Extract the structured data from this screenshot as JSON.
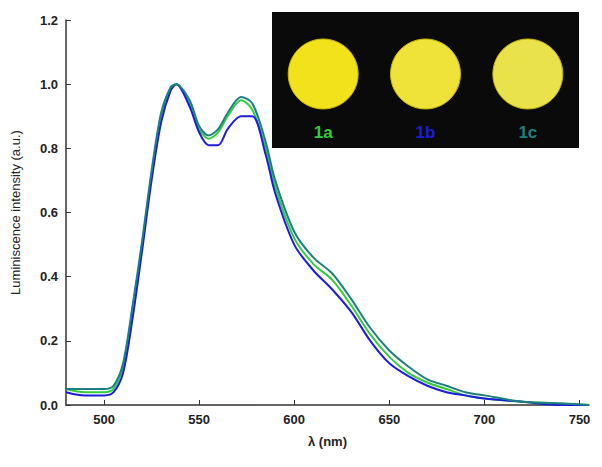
{
  "chart_data": {
    "type": "line",
    "x_label": "λ (nm)",
    "y_label": "Luminiscence intensity (a.u.)",
    "x": [
      480,
      490,
      500,
      505,
      510,
      515,
      520,
      525,
      530,
      535,
      538,
      545,
      550,
      555,
      560,
      565,
      572,
      578,
      585,
      590,
      600,
      610,
      620,
      630,
      640,
      650,
      660,
      670,
      680,
      690,
      700,
      720,
      740,
      755
    ],
    "series": [
      {
        "name": "1a",
        "color": "#2fcf3a",
        "values": [
          0.05,
          0.04,
          0.04,
          0.05,
          0.12,
          0.3,
          0.5,
          0.72,
          0.9,
          0.99,
          1.0,
          0.94,
          0.86,
          0.83,
          0.85,
          0.9,
          0.95,
          0.92,
          0.8,
          0.68,
          0.52,
          0.44,
          0.39,
          0.31,
          0.22,
          0.15,
          0.1,
          0.07,
          0.05,
          0.03,
          0.02,
          0.01,
          0.005,
          0.0
        ]
      },
      {
        "name": "1b",
        "color": "#1c1cdc",
        "values": [
          0.04,
          0.03,
          0.03,
          0.04,
          0.1,
          0.27,
          0.48,
          0.7,
          0.88,
          0.98,
          1.0,
          0.93,
          0.85,
          0.81,
          0.81,
          0.86,
          0.9,
          0.9,
          0.78,
          0.66,
          0.5,
          0.42,
          0.36,
          0.29,
          0.2,
          0.13,
          0.09,
          0.06,
          0.04,
          0.03,
          0.02,
          0.01,
          0.0,
          0.0
        ]
      },
      {
        "name": "1c",
        "color": "#1f7f7f",
        "values": [
          0.05,
          0.05,
          0.05,
          0.06,
          0.13,
          0.31,
          0.51,
          0.73,
          0.91,
          0.99,
          1.0,
          0.95,
          0.87,
          0.84,
          0.86,
          0.91,
          0.96,
          0.94,
          0.82,
          0.7,
          0.54,
          0.46,
          0.41,
          0.33,
          0.24,
          0.17,
          0.12,
          0.08,
          0.06,
          0.04,
          0.03,
          0.01,
          0.005,
          0.0
        ]
      }
    ],
    "xlim": [
      480,
      755
    ],
    "xticks": [
      500,
      550,
      600,
      650,
      700,
      750
    ],
    "ylim": [
      0,
      1.2
    ],
    "yticks": [
      {
        "value": 0,
        "label": "0.0"
      },
      0.2,
      0.4,
      0.6,
      0.8,
      {
        "value": 1,
        "label": "1.0"
      },
      1.2
    ],
    "grid": false,
    "legend": "upper right"
  }
}
